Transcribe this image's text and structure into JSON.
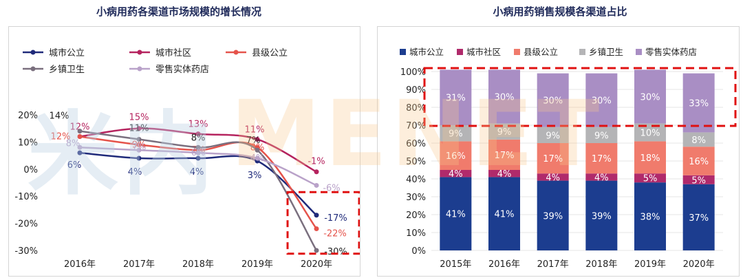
{
  "titles": {
    "left": "小病用药各渠道市场规模的增长情况",
    "right": "小病用药销售规模各渠道占比"
  },
  "watermark": {
    "left": "米内",
    "right": "MENET"
  },
  "chart_data": [
    {
      "type": "line",
      "title": "小病用药各渠道市场规模的增长情况",
      "categories": [
        "2016年",
        "2017年",
        "2018年",
        "2019年",
        "2020年"
      ],
      "ylim": [
        -30,
        20
      ],
      "yticks": [
        20,
        10,
        0,
        -10,
        -20,
        -30
      ],
      "ytick_labels": [
        "20%",
        "10%",
        "0%",
        "-10%",
        "-20%",
        "-30%"
      ],
      "grid": false,
      "legend": "top-left",
      "series": [
        {
          "name": "城市公立",
          "color": "#1f2a7a",
          "values": [
            6,
            4,
            4,
            3,
            -17
          ],
          "labels": [
            "6%",
            "4%",
            "4%",
            "3%",
            "-17%"
          ]
        },
        {
          "name": "城市社区",
          "color": "#b5235e",
          "values": [
            12,
            15,
            13,
            11,
            -1
          ],
          "labels": [
            "12%",
            "15%",
            "13%",
            "11%",
            "-1%"
          ]
        },
        {
          "name": "县级公立",
          "color": "#e5534b",
          "values": [
            12,
            9,
            7,
            8,
            -22
          ],
          "labels": [
            "12%",
            "9%",
            "7%",
            "8%",
            "-22%"
          ]
        },
        {
          "name": "乡镇卫生",
          "color": "#7a6f7e",
          "values": [
            14,
            11,
            8,
            7,
            -30
          ],
          "labels": [
            "14%",
            "11%",
            "8%",
            "7%",
            "-30%"
          ]
        },
        {
          "name": "零售实体药店",
          "color": "#b9a2c9",
          "values": [
            8,
            7,
            6,
            4,
            -6
          ],
          "labels": [
            "8%",
            "7%",
            "6%",
            "4%",
            "-6%"
          ]
        }
      ],
      "annotation": "dashed red box around 2020 values"
    },
    {
      "type": "bar",
      "stacked": true,
      "title": "小病用药销售规模各渠道占比",
      "categories": [
        "2015年",
        "2016年",
        "2017年",
        "2018年",
        "2019年",
        "2020年"
      ],
      "ylim": [
        0,
        100
      ],
      "yticks": [
        0,
        10,
        20,
        30,
        40,
        50,
        60,
        70,
        80,
        90,
        100
      ],
      "ytick_labels": [
        "0%",
        "10%",
        "20%",
        "30%",
        "40%",
        "50%",
        "60%",
        "70%",
        "80%",
        "90%",
        "100%"
      ],
      "legend": "top",
      "series": [
        {
          "name": "城市公立",
          "color": "#1c3d8f",
          "values": [
            41,
            41,
            39,
            39,
            38,
            37
          ],
          "labels": [
            "41%",
            "41%",
            "39%",
            "39%",
            "38%",
            "37%"
          ]
        },
        {
          "name": "城市社区",
          "color": "#b02a6b",
          "values": [
            4,
            4,
            4,
            4,
            5,
            5
          ],
          "labels": [
            "4%",
            "4%",
            "4%",
            "4%",
            "5%",
            "5%"
          ]
        },
        {
          "name": "县级公立",
          "color": "#f07b6c",
          "values": [
            16,
            17,
            17,
            17,
            18,
            16
          ],
          "labels": [
            "16%",
            "17%",
            "17%",
            "17%",
            "18%",
            "16%"
          ]
        },
        {
          "name": "乡镇卫生",
          "color": "#b4b4b6",
          "values": [
            9,
            9,
            9,
            9,
            10,
            8
          ],
          "labels": [
            "9%",
            "9%",
            "9%",
            "9%",
            "10%",
            "8%"
          ]
        },
        {
          "name": "零售实体药店",
          "color": "#a98ec4",
          "values": [
            31,
            30,
            30,
            30,
            30,
            33
          ],
          "labels": [
            "31%",
            "30%",
            "30%",
            "30%",
            "30%",
            "33%"
          ]
        }
      ],
      "annotation": "dashed red box around the 零售实体药店 segments"
    }
  ]
}
